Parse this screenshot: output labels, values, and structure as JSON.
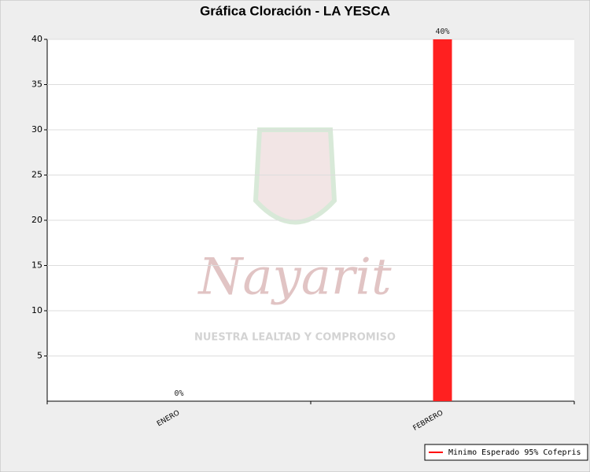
{
  "chart_data": {
    "type": "bar",
    "title": "Gráfica Cloración - LA YESCA",
    "categories": [
      "ENERO",
      "FEBRERO"
    ],
    "values": [
      0,
      40
    ],
    "value_labels": [
      "0%",
      "40%"
    ],
    "color": "#ff2020",
    "ylim": [
      0,
      40
    ],
    "yticks": [
      5,
      10,
      15,
      20,
      25,
      30,
      35,
      40
    ],
    "grid": true,
    "legend": {
      "name": "Minimo Esperado 95% Cofepris",
      "color": "#ff0000",
      "position": "bottom-right"
    },
    "watermark": {
      "title": "Nayarit",
      "subtitle": "NUESTRA LEALTAD Y COMPROMISO"
    }
  }
}
